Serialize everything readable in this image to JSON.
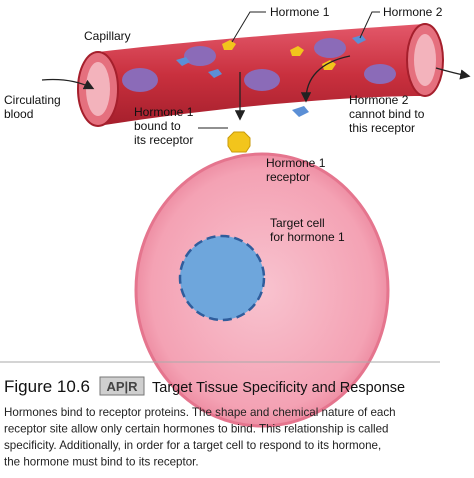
{
  "diagram": {
    "labels": {
      "hormone1_top": {
        "lines": [
          "Hormone 1"
        ]
      },
      "hormone2_top": {
        "lines": [
          "Hormone 2"
        ]
      },
      "capillary": {
        "lines": [
          "Capillary"
        ]
      },
      "circulating_blood": {
        "lines": [
          "Circulating",
          "blood"
        ]
      },
      "hormone1_bound": {
        "lines": [
          "Hormone 1",
          "bound to",
          "its receptor"
        ]
      },
      "hormone2_cannot_bind": {
        "lines": [
          "Hormone 2",
          "cannot bind to",
          "this receptor"
        ]
      },
      "hormone1_receptor": {
        "lines": [
          "Hormone 1",
          "receptor"
        ]
      },
      "target_cell": {
        "lines": [
          "Target cell",
          "for hormone 1"
        ]
      }
    }
  },
  "figure": {
    "number": "Figure 10.6",
    "badge": "AP|R",
    "title": "Target Tissue Specificity and Response",
    "caption_lines": [
      "Hormones bind to receptor proteins. The shape and chemical nature of each",
      "receptor site allow only certain hormones to bind. This relationship is called",
      "specificity. Additionally, in order for a target cell to respond to its hormone,",
      "the hormone must bind to its receptor."
    ]
  }
}
